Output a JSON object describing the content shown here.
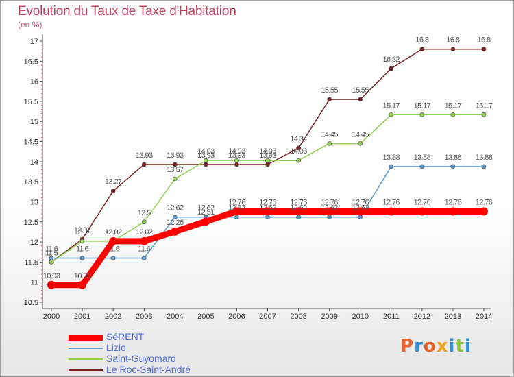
{
  "title": "Evolution du Taux de Taxe d'Habitation",
  "unit": "(en %)",
  "logo": {
    "text": "Proxiti",
    "colors": [
      "#e8612c",
      "#2f8fd8",
      "#e8612c",
      "#f0a020",
      "#2f8fd8",
      "#8cc63f",
      "#2f8fd8"
    ]
  },
  "chart_data": {
    "type": "line",
    "title": "Evolution du Taux de Taxe d'Habitation",
    "ylabel": "(en %)",
    "xlabel": "",
    "ylim": [
      10.5,
      17
    ],
    "yticks": [
      "10.5",
      "11",
      "11.5",
      "12",
      "12.5",
      "13",
      "13.5",
      "14",
      "14.5",
      "15",
      "15.5",
      "16",
      "16.5",
      "17"
    ],
    "x": [
      "2000",
      "2001",
      "2002",
      "2003",
      "2004",
      "2005",
      "2006",
      "2007",
      "2008",
      "2009",
      "2010",
      "2011",
      "2012",
      "2013",
      "2014"
    ],
    "grid": false,
    "legend": "bottom-left",
    "series": [
      {
        "name": "SéRENT",
        "color": "#ff0000",
        "values": [
          10.93,
          10.93,
          12.02,
          12.02,
          12.26,
          12.51,
          12.76,
          12.76,
          12.76,
          12.76,
          12.76,
          12.76,
          12.76,
          12.76,
          12.76
        ],
        "labels": [
          "10.93",
          "10.93",
          "12.02",
          "12.02",
          "12.26",
          "12.51",
          "12.76",
          "12.76",
          "12.76",
          "12.76",
          "12.76",
          "12.76",
          "12.76",
          "12.76",
          "12.76"
        ]
      },
      {
        "name": "Lizio",
        "color": "#5b9bd0",
        "values": [
          11.6,
          11.6,
          11.6,
          11.6,
          12.62,
          12.62,
          12.62,
          12.62,
          12.62,
          12.62,
          12.62,
          13.88,
          13.88,
          13.88,
          13.88
        ],
        "labels": [
          "11.6",
          "11.6",
          "11.6",
          "11.6",
          "12.62",
          "12.62",
          "12.62",
          "12.62",
          "12.62",
          "12.62",
          "12.62",
          "13.88",
          "13.88",
          "13.88",
          "13.88"
        ]
      },
      {
        "name": "Saint-Guyomard",
        "color": "#8ed14f",
        "values": [
          11.5,
          12.02,
          12.02,
          12.5,
          13.57,
          14.03,
          14.03,
          14.03,
          14.03,
          14.45,
          14.45,
          15.17,
          15.17,
          15.17,
          15.17
        ],
        "labels": [
          "11.5",
          "12.02",
          "12.02",
          "12.5",
          "13.57",
          "14.03",
          "14.03",
          "14.03",
          "14.03",
          "14.45",
          "14.45",
          "15.17",
          "15.17",
          "15.17",
          "15.17"
        ]
      },
      {
        "name": "Le Roc-Saint-André",
        "color": "#7a1f22",
        "values": [
          11.5,
          12.07,
          13.27,
          13.93,
          13.93,
          13.93,
          13.93,
          13.93,
          14.34,
          15.55,
          15.55,
          16.32,
          16.8,
          16.8,
          16.8
        ],
        "labels": [
          "11.5",
          "12.07",
          "13.27",
          "13.93",
          "13.93",
          "13.93",
          "13.93",
          "13.93",
          "14.34",
          "15.55",
          "15.55",
          "16.32",
          "16.8",
          "16.8",
          "16.8"
        ]
      }
    ]
  }
}
